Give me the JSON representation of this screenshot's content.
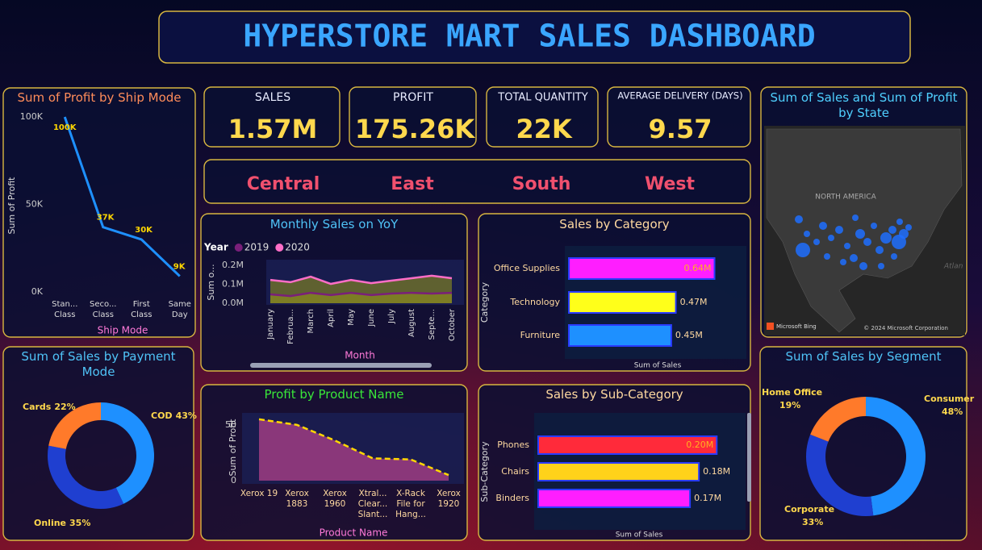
{
  "title": "HYPERSTORE MART SALES DASHBOARD",
  "kpis": [
    {
      "label": "SALES",
      "value": "1.57M"
    },
    {
      "label": "PROFIT",
      "value": "175.26K"
    },
    {
      "label": "TOTAL QUANTITY",
      "value": "22K"
    },
    {
      "label": "AVERAGE DELIVERY (DAYS)",
      "value": "9.57"
    }
  ],
  "regions": [
    "Central",
    "East",
    "South",
    "West"
  ],
  "map": {
    "title": "Sum of Sales and Sum of Profit by State",
    "region_label": "NORTH AMERICA",
    "ocean_label": "Atlan",
    "attribution": "Microsoft Bing",
    "copyright": "© 2024 Microsoft Corporation"
  },
  "chart_data": [
    {
      "type": "line",
      "title": "Sum of Profit by Ship Mode",
      "categories": [
        "Stan... Class",
        "Seco... Class",
        "First Class",
        "Same Day"
      ],
      "values": [
        100000,
        37000,
        30000,
        9000
      ],
      "value_labels": [
        "100K",
        "37K",
        "30K",
        "9K"
      ],
      "color": "#1e90ff",
      "ylim": [
        0,
        100000
      ],
      "yticks": [
        {
          "value": 0,
          "label": "0K"
        },
        {
          "value": 50000,
          "label": "50K"
        },
        {
          "value": 100000,
          "label": "100K"
        }
      ],
      "y_label": "Sum of Profit",
      "x_label": "Ship Mode"
    },
    {
      "type": "donut",
      "title": "Sum of Sales by Payment Mode",
      "categories": [
        "COD",
        "Online",
        "Cards"
      ],
      "values": [
        43,
        35,
        22
      ],
      "value_labels": [
        "43%",
        "35%",
        "22%"
      ],
      "colors": [
        "#1e90ff",
        "#1f3fd0",
        "#ff7a2a"
      ]
    },
    {
      "type": "area",
      "title": "Monthly Sales on YoY",
      "legend_title": "Year",
      "categories": [
        "January",
        "Februa...",
        "March",
        "April",
        "May",
        "June",
        "July",
        "August",
        "Septe...",
        "October"
      ],
      "series": [
        {
          "name": "2019",
          "color": "#7a1f7a",
          "values": [
            47000,
            38000,
            55000,
            43000,
            55000,
            43000,
            51000,
            55000,
            51000,
            55000
          ]
        },
        {
          "name": "2020",
          "color": "#ff6ec7",
          "values": [
            123000,
            111000,
            140000,
            102000,
            123000,
            106000,
            119000,
            132000,
            145000,
            132000
          ]
        }
      ],
      "fill": "#8f8f1c",
      "ylim": [
        0,
        200000
      ],
      "yticks": [
        {
          "value": 0,
          "label": "0.0M"
        },
        {
          "value": 100000,
          "label": "0.1M"
        },
        {
          "value": 200000,
          "label": "0.2M"
        }
      ],
      "y_label": "Sum o...",
      "x_label": "Month"
    },
    {
      "type": "hbar",
      "title": "Sales by Category",
      "categories": [
        "Office Supplies",
        "Technology",
        "Furniture"
      ],
      "values": [
        640000,
        470000,
        450000
      ],
      "value_labels": [
        "0.64M",
        "0.47M",
        "0.45M"
      ],
      "colors": [
        "#ff1eff",
        "#ffff1a",
        "#1e90ff"
      ],
      "xlim": [
        0,
        780000
      ],
      "y_label": "Category",
      "x_label": "Sum of Sales"
    },
    {
      "type": "area",
      "title": "Profit by Product Name",
      "categories": [
        "Xerox 19",
        "Xerox 1883",
        "Xerox 1960",
        "Xtral... Clear... Slant...",
        "X-Rack File for Hang...",
        "Xerox 1920"
      ],
      "values": [
        55,
        50,
        36,
        20,
        19,
        5
      ],
      "color": "#ffd700",
      "fill": "#b0408a",
      "ylim": [
        0,
        60
      ],
      "yticks": [
        0,
        50
      ],
      "y_label": "Sum of Profit",
      "x_label": "Product Name"
    },
    {
      "type": "hbar",
      "title": "Sales by Sub-Category",
      "categories": [
        "Phones",
        "Chairs",
        "Binders"
      ],
      "values": [
        200000,
        180000,
        170000
      ],
      "value_labels": [
        "0.20M",
        "0.18M",
        "0.17M"
      ],
      "colors": [
        "#ff2a3a",
        "#ffd21a",
        "#ff1eff"
      ],
      "xlim": [
        0,
        235000
      ],
      "y_label": "Sub-Category",
      "x_label": "Sum of Sales"
    },
    {
      "type": "donut",
      "title": "Sum of Sales by Segment",
      "categories": [
        "Consumer",
        "Corporate",
        "Home Office"
      ],
      "values": [
        48,
        33,
        19
      ],
      "value_labels": [
        "48%",
        "33%",
        "19%"
      ],
      "colors": [
        "#1e90ff",
        "#1f3fd0",
        "#ff7a2a"
      ]
    }
  ]
}
